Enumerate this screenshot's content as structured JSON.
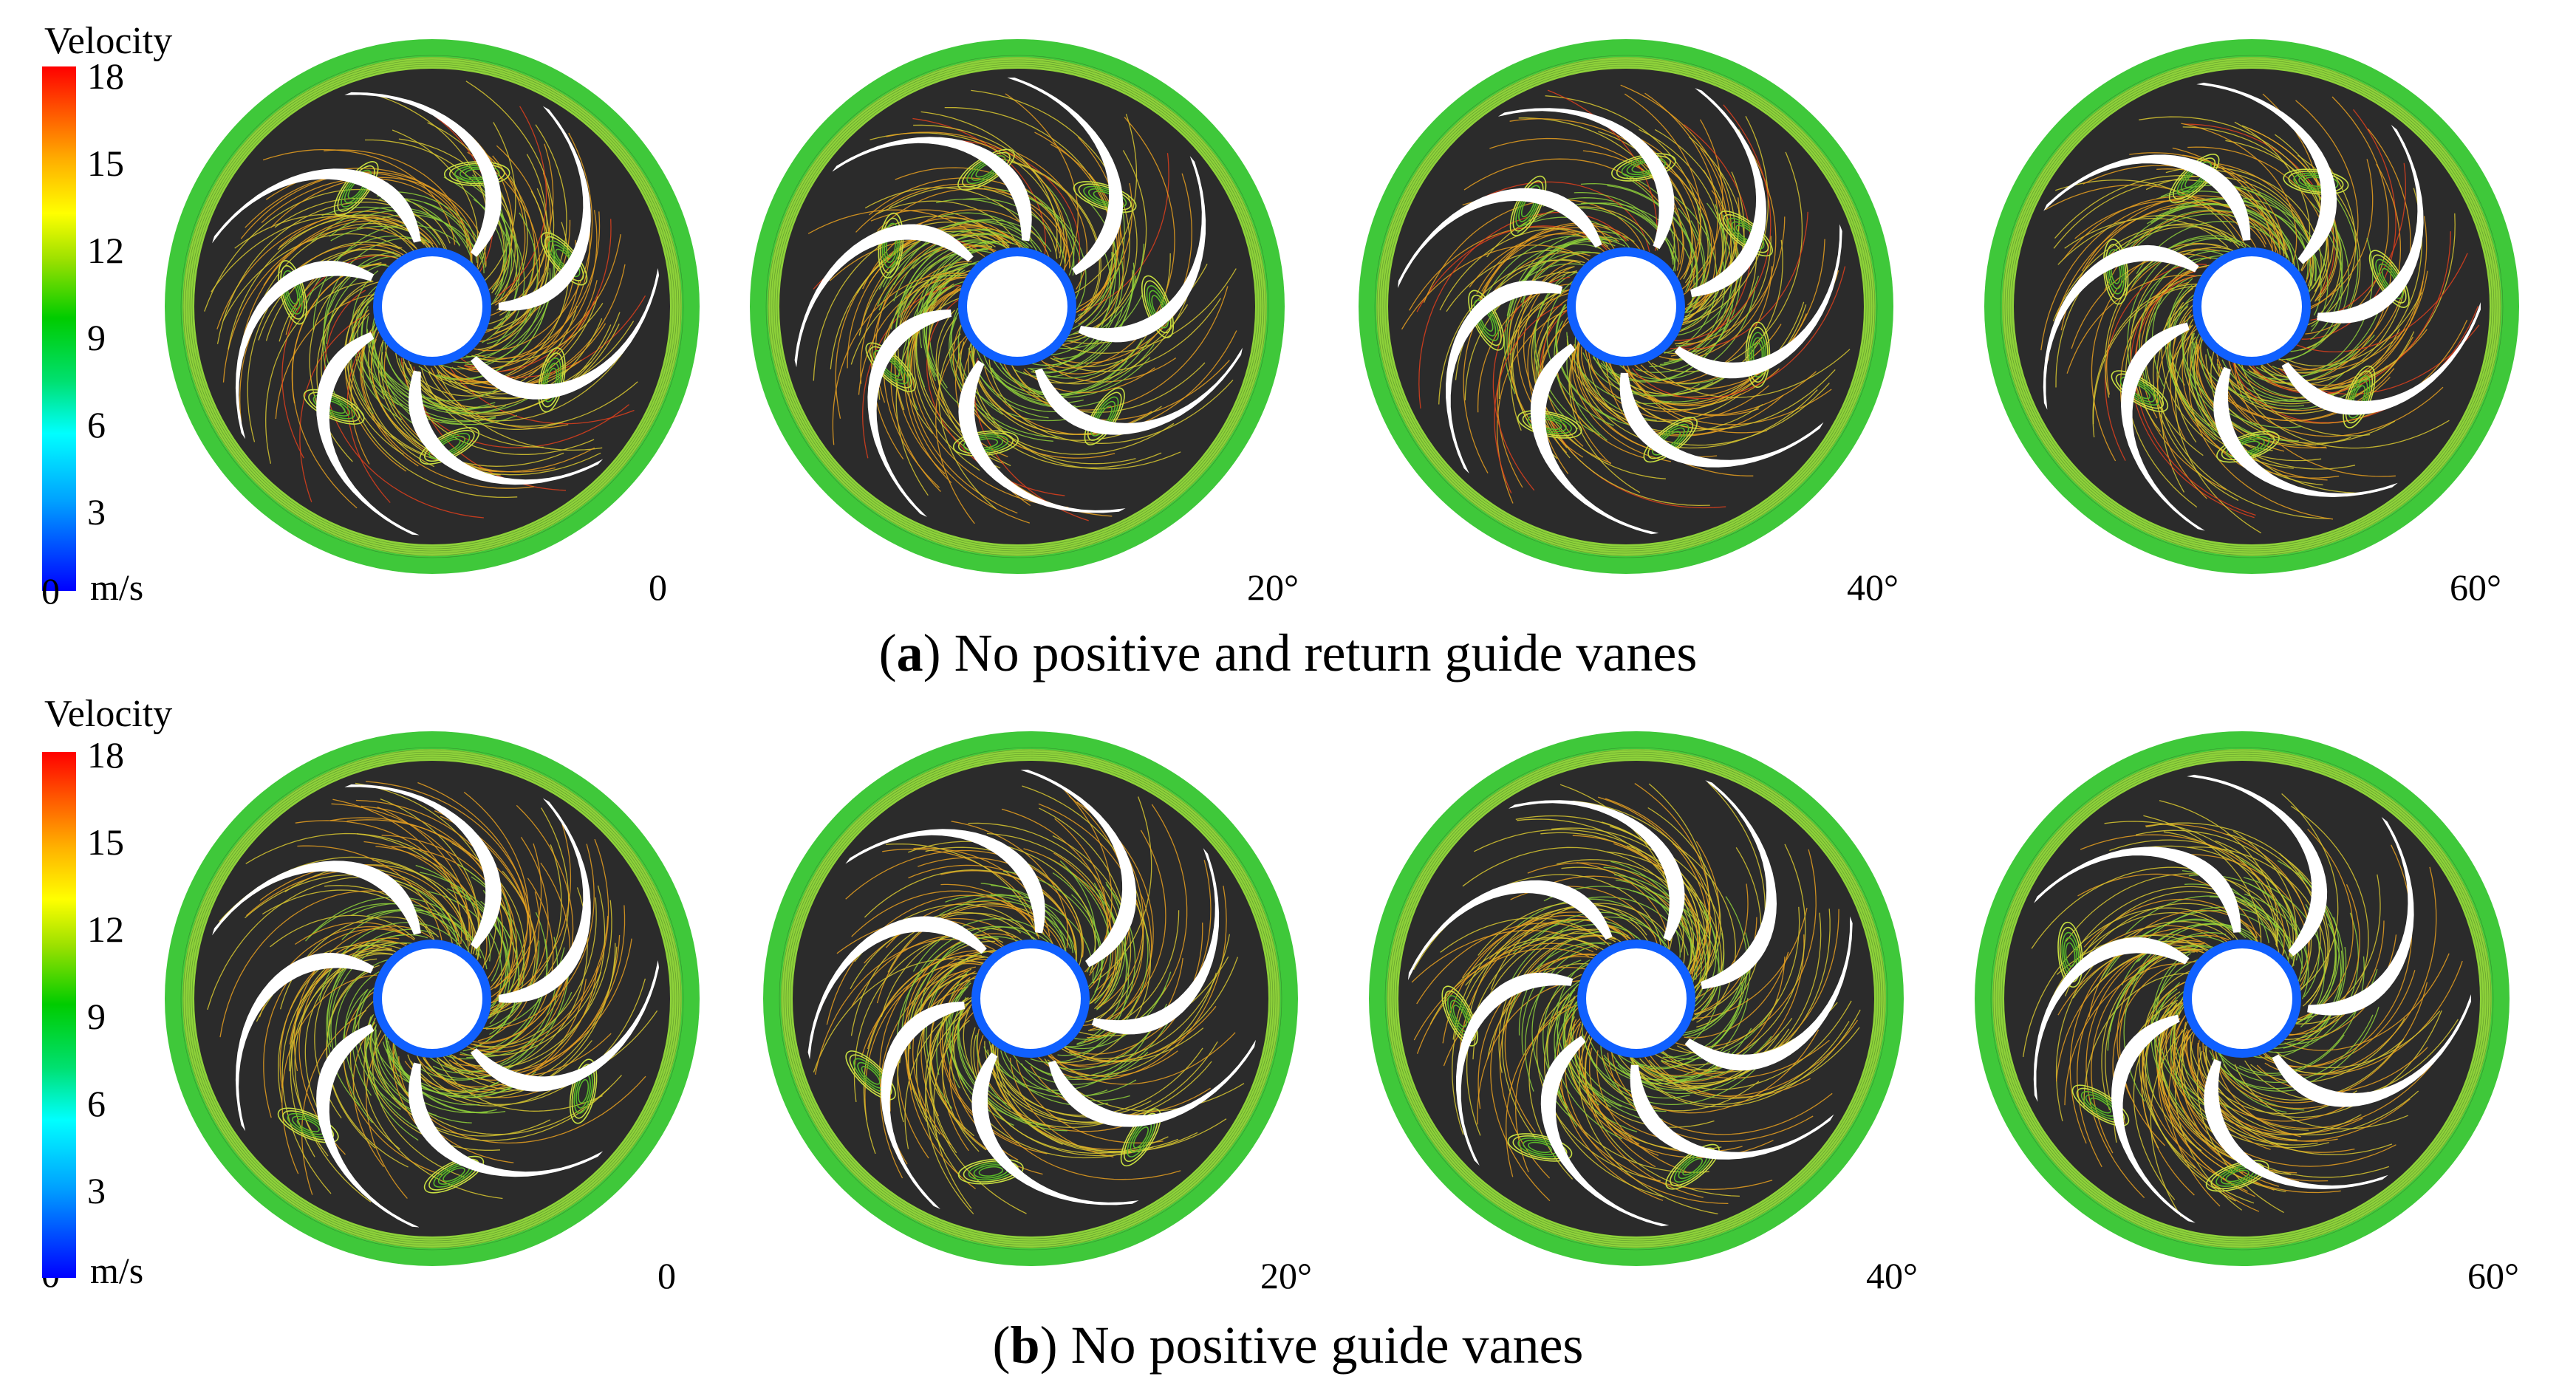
{
  "colorbar": {
    "title": "Velocity",
    "unit": "m/s",
    "ticks": [
      "18",
      "15",
      "12",
      "9",
      "6",
      "3",
      "0"
    ],
    "colors": [
      "#0000ff",
      "#00a0ff",
      "#00ffff",
      "#00e070",
      "#00cc00",
      "#9ae000",
      "#ffff00",
      "#ffb000",
      "#ff5000",
      "#ff0000"
    ]
  },
  "panels": [
    {
      "caption_letter": "a",
      "caption_text": "No positive and return guide vanes",
      "angles": [
        "0",
        "20°",
        "40°",
        "60°"
      ]
    },
    {
      "caption_letter": "b",
      "caption_text": "No positive guide vanes",
      "angles": [
        "0",
        "20°",
        "40°",
        "60°"
      ]
    }
  ],
  "style": {
    "background_dark": "#2b2b2b",
    "ring_outer": "#3fc83a",
    "ring_inner": "#8ed23a",
    "blade": "#ffffff",
    "hub_edge": "#1060ff",
    "streak_core": "#20b8e8",
    "streak_mid": "#8fd03a",
    "streak_outer_a": "#e8a020",
    "streak_outer_b": "#d9c830",
    "vortex": "#c8e040"
  }
}
